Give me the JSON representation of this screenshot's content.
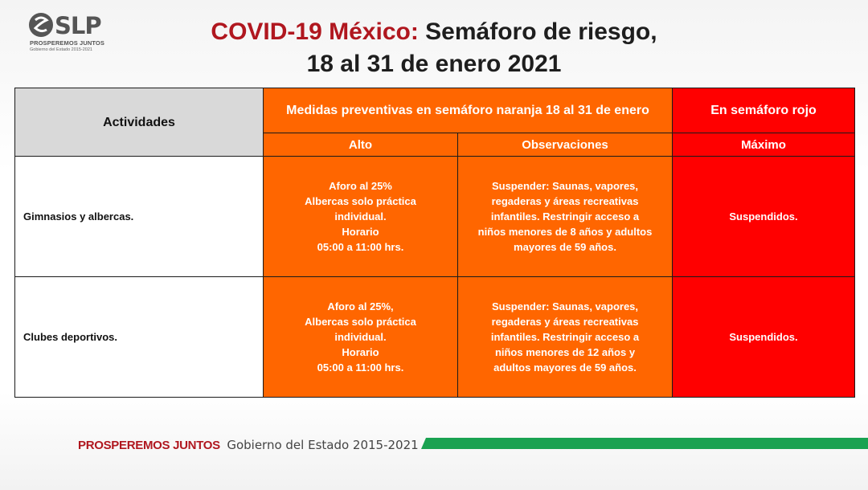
{
  "logo": {
    "text": "SLP",
    "subtitle": "PROSPEREMOS JUNTOS",
    "subsubtitle": "Gobierno del Estado 2015-2021"
  },
  "title": {
    "red_part": "COVID-19 México:",
    "dark_part": " Semáforo de riesgo,",
    "line2": "18 al 31 de enero 2021"
  },
  "table": {
    "head_activities": "Actividades",
    "head_orange": "Medidas preventivas en semáforo naranja 18 al 31 de enero",
    "head_red": "En semáforo rojo",
    "sub_alto": "Alto",
    "sub_obs": "Observaciones",
    "sub_max": "Máximo",
    "rows": [
      {
        "activity": "Gimnasios y albercas.",
        "alto": [
          "Aforo al 25%",
          "Albercas solo práctica",
          "individual.",
          "Horario",
          "05:00 a 11:00 hrs."
        ],
        "obs": [
          "Suspender: Saunas, vapores,",
          "regaderas y áreas recreativas",
          "infantiles. Restringir acceso a",
          "niños menores de 8 años y adultos",
          "mayores de 59 años."
        ],
        "max": "Suspendidos."
      },
      {
        "activity": "Clubes deportivos.",
        "alto": [
          "Aforo al 25%,",
          "Albercas solo práctica",
          "individual.",
          "Horario",
          "05:00 a 11:00 hrs."
        ],
        "obs": [
          "Suspender: Saunas, vapores,",
          "regaderas y áreas recreativas",
          "infantiles. Restringir acceso a",
          "niños menores de 12 años y",
          "adultos mayores de 59 años."
        ],
        "max": "Suspendidos."
      }
    ]
  },
  "footer": {
    "prosperemos": "PROSPEREMOS JUNTOS",
    "gobierno": "Gobierno del Estado 2015-2021"
  },
  "colors": {
    "orange": "#ff6600",
    "red": "#ff0000",
    "header_gray": "#d9d9d9",
    "title_red": "#b0171f",
    "footer_green": "#1aa251"
  }
}
